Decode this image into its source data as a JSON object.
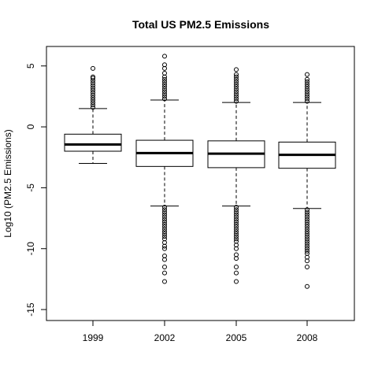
{
  "chart_data": {
    "type": "boxplot",
    "title": "Total US PM2.5 Emissions",
    "xlabel": "",
    "ylabel": "Log10 (PM2.5 Emissions)",
    "categories": [
      "1999",
      "2002",
      "2005",
      "2008"
    ],
    "ylim": [
      -15.9,
      6.6
    ],
    "yticks": [
      -15,
      -10,
      -5,
      0,
      5
    ],
    "ytick_labels": [
      "-15",
      "-10",
      "-5",
      "0",
      "5"
    ],
    "grid": false,
    "legend": "none",
    "boxes": [
      {
        "category": "1999",
        "whisker_low": -3.0,
        "q1": -2.0,
        "median": -1.45,
        "q3": -0.6,
        "whisker_high": 1.5,
        "outliers": [
          1.6,
          1.8,
          2.0,
          2.2,
          2.4,
          2.6,
          2.8,
          3.0,
          3.2,
          3.4,
          3.6,
          3.8,
          4.0,
          4.1,
          4.8
        ]
      },
      {
        "category": "2002",
        "whisker_low": -6.5,
        "q1": -3.25,
        "median": -2.15,
        "q3": -1.1,
        "whisker_high": 2.2,
        "outliers": [
          2.3,
          2.5,
          2.7,
          2.9,
          3.1,
          3.3,
          3.5,
          3.7,
          3.9,
          4.1,
          4.4,
          4.8,
          5.1,
          5.8,
          -6.6,
          -6.8,
          -7.0,
          -7.2,
          -7.4,
          -7.6,
          -7.8,
          -8.0,
          -8.2,
          -8.4,
          -8.6,
          -8.8,
          -9.0,
          -9.2,
          -9.5,
          -9.8,
          -10.0,
          -10.6,
          -10.9,
          -11.5,
          -12.0,
          -12.7
        ]
      },
      {
        "category": "2005",
        "whisker_low": -6.5,
        "q1": -3.35,
        "median": -2.2,
        "q3": -1.15,
        "whisker_high": 2.0,
        "outliers": [
          2.1,
          2.3,
          2.5,
          2.7,
          2.9,
          3.1,
          3.3,
          3.5,
          3.7,
          3.9,
          4.1,
          4.3,
          4.7,
          -6.6,
          -6.8,
          -7.0,
          -7.2,
          -7.4,
          -7.6,
          -7.8,
          -8.0,
          -8.2,
          -8.4,
          -8.6,
          -8.8,
          -9.0,
          -9.2,
          -9.4,
          -9.7,
          -10.0,
          -10.5,
          -10.8,
          -11.5,
          -12.0,
          -12.7
        ]
      },
      {
        "category": "2008",
        "whisker_low": -6.7,
        "q1": -3.4,
        "median": -2.3,
        "q3": -1.25,
        "whisker_high": 2.0,
        "outliers": [
          2.1,
          2.3,
          2.5,
          2.7,
          2.9,
          3.1,
          3.3,
          3.5,
          3.7,
          3.9,
          4.3,
          -6.8,
          -7.0,
          -7.2,
          -7.4,
          -7.6,
          -7.8,
          -8.0,
          -8.2,
          -8.4,
          -8.6,
          -8.8,
          -9.0,
          -9.2,
          -9.4,
          -9.6,
          -9.8,
          -10.0,
          -10.2,
          -10.4,
          -10.7,
          -11.0,
          -11.5,
          -13.1
        ]
      }
    ]
  }
}
